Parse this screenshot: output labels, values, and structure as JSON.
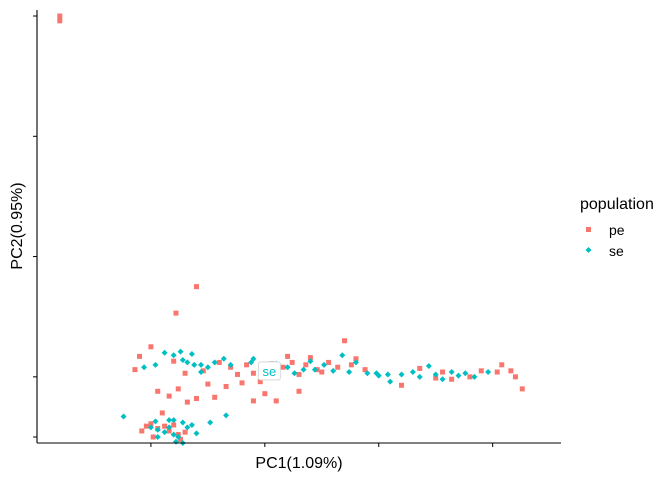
{
  "chart_data": {
    "type": "scatter",
    "xlabel": "PC1(1.09%)",
    "ylabel": "PC2(0.95%)",
    "xlim": [
      -0.05,
      0.18
    ],
    "ylim": [
      -0.055,
      0.305
    ],
    "xticks": [
      0.0,
      0.05,
      0.1,
      0.15
    ],
    "yticks": [
      -0.05,
      0.0,
      0.1,
      0.2,
      0.3
    ],
    "legend": {
      "title": "population",
      "position": "right"
    },
    "annotation": {
      "text": "se",
      "x": 0.052,
      "y": 0.005,
      "color": "#00BFC4"
    },
    "series": [
      {
        "name": "pe",
        "color": "#F8766D",
        "points": [
          [
            -0.04,
            0.3
          ],
          [
            -0.04,
            0.296
          ],
          [
            0.02,
            0.075
          ],
          [
            0.011,
            0.053
          ],
          [
            0.0,
            0.025
          ],
          [
            -0.005,
            0.017
          ],
          [
            -0.007,
            0.006
          ],
          [
            0.01,
            0.013
          ],
          [
            0.015,
            0.003
          ],
          [
            0.023,
            0.005
          ],
          [
            0.03,
            0.012
          ],
          [
            0.035,
            0.008
          ],
          [
            0.038,
            0.002
          ],
          [
            0.042,
            0.01
          ],
          [
            0.045,
            0.003
          ],
          [
            0.048,
            -0.004
          ],
          [
            0.05,
            0.006
          ],
          [
            0.053,
            0.011
          ],
          [
            0.055,
            0.0
          ],
          [
            0.058,
            0.008
          ],
          [
            0.06,
            0.017
          ],
          [
            0.062,
            0.012
          ],
          [
            0.065,
            0.002
          ],
          [
            0.068,
            0.01
          ],
          [
            0.07,
            0.016
          ],
          [
            0.073,
            0.006
          ],
          [
            0.075,
            0.004
          ],
          [
            0.078,
            0.012
          ],
          [
            0.082,
            0.008
          ],
          [
            0.085,
            0.03
          ],
          [
            0.088,
            0.01
          ],
          [
            0.09,
            0.015
          ],
          [
            0.094,
            0.006
          ],
          [
            0.05,
            -0.014
          ],
          [
            0.045,
            -0.02
          ],
          [
            0.055,
            -0.02
          ],
          [
            0.025,
            -0.006
          ],
          [
            0.02,
            -0.018
          ],
          [
            0.04,
            -0.005
          ],
          [
            0.016,
            -0.021
          ],
          [
            0.012,
            -0.01
          ],
          [
            0.008,
            -0.016
          ],
          [
            0.003,
            -0.012
          ],
          [
            0.005,
            -0.03
          ],
          [
            0.028,
            -0.017
          ],
          [
            0.033,
            -0.008
          ],
          [
            0.065,
            -0.012
          ],
          [
            -0.004,
            -0.045
          ],
          [
            -0.002,
            -0.041
          ],
          [
            0.0,
            -0.039
          ],
          [
            0.003,
            -0.043
          ],
          [
            0.006,
            -0.041
          ],
          [
            0.008,
            -0.045
          ],
          [
            0.01,
            -0.04
          ],
          [
            0.012,
            -0.048
          ],
          [
            0.013,
            -0.052
          ],
          [
            0.015,
            -0.046
          ],
          [
            0.001,
            -0.05
          ],
          [
            0.11,
            -0.007
          ],
          [
            0.118,
            0.007
          ],
          [
            0.128,
            0.004
          ],
          [
            0.132,
            -0.002
          ],
          [
            0.14,
            0.0
          ],
          [
            0.152,
            0.004
          ],
          [
            0.154,
            0.01
          ],
          [
            0.158,
            0.005
          ],
          [
            0.16,
            0.0
          ],
          [
            0.163,
            -0.01
          ],
          [
            0.145,
            0.005
          ],
          [
            0.125,
            -0.001
          ]
        ]
      },
      {
        "name": "se",
        "color": "#00BFC4",
        "points": [
          [
            -0.012,
            -0.033
          ],
          [
            -0.003,
            0.008
          ],
          [
            0.002,
            0.01
          ],
          [
            0.006,
            0.02
          ],
          [
            0.01,
            0.018
          ],
          [
            0.013,
            0.021
          ],
          [
            0.016,
            0.012
          ],
          [
            0.019,
            0.01
          ],
          [
            0.022,
            0.004
          ],
          [
            0.025,
            0.008
          ],
          [
            0.028,
            0.012
          ],
          [
            0.032,
            0.015
          ],
          [
            0.035,
            0.01
          ],
          [
            0.018,
            0.019
          ],
          [
            0.014,
            0.014
          ],
          [
            0.022,
            0.01
          ],
          [
            0.045,
            0.015
          ],
          [
            0.055,
            0.011
          ],
          [
            0.06,
            0.008
          ],
          [
            0.063,
            0.003
          ],
          [
            0.067,
            0.006
          ],
          [
            0.07,
            0.013
          ],
          [
            0.072,
            0.006
          ],
          [
            0.076,
            0.01
          ],
          [
            0.08,
            0.005
          ],
          [
            0.084,
            0.018
          ],
          [
            0.087,
            0.004
          ],
          [
            0.09,
            0.012
          ],
          [
            0.095,
            0.003
          ],
          [
            0.1,
            0.001
          ],
          [
            0.104,
            0.002
          ],
          [
            0.11,
            0.002
          ],
          [
            0.115,
            0.004
          ],
          [
            0.118,
            0.0
          ],
          [
            0.122,
            0.009
          ],
          [
            0.125,
            0.002
          ],
          [
            0.128,
            -0.002
          ],
          [
            0.132,
            0.004
          ],
          [
            0.135,
            0.001
          ],
          [
            0.142,
            0.0
          ],
          [
            0.148,
            0.004
          ],
          [
            0.138,
            0.003
          ],
          [
            0.026,
            -0.038
          ],
          [
            0.033,
            -0.032
          ],
          [
            0.008,
            -0.036
          ],
          [
            0.002,
            -0.037
          ],
          [
            0.0,
            -0.042
          ],
          [
            0.003,
            -0.05
          ],
          [
            0.006,
            -0.046
          ],
          [
            0.008,
            -0.042
          ],
          [
            0.01,
            -0.048
          ],
          [
            0.011,
            -0.054
          ],
          [
            0.012,
            -0.05
          ],
          [
            0.014,
            -0.038
          ],
          [
            0.016,
            -0.042
          ],
          [
            0.018,
            -0.04
          ],
          [
            0.02,
            -0.047
          ],
          [
            0.003,
            -0.044
          ],
          [
            0.01,
            -0.036
          ],
          [
            0.014,
            -0.055
          ],
          [
            0.105,
            -0.004
          ],
          [
            0.099,
            0.003
          ],
          [
            0.044,
            0.012
          ]
        ]
      }
    ]
  }
}
